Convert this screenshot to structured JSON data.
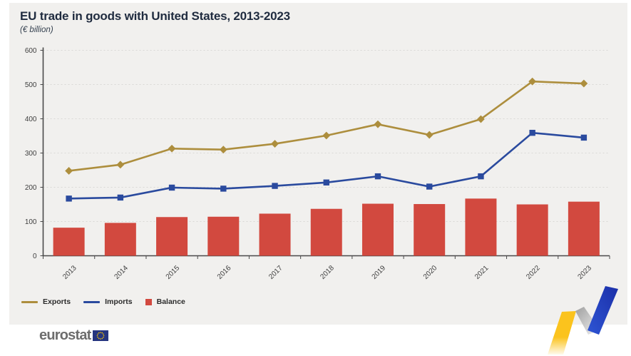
{
  "header": {
    "title": "EU trade in goods with United States, 2013-2023",
    "subtitle": "(€ billion)"
  },
  "chart_data": {
    "type": "combo",
    "title": "EU trade in goods with United States, 2013-2023",
    "subtitle": "(€ billion)",
    "categories": [
      "2013",
      "2014",
      "2015",
      "2016",
      "2017",
      "2018",
      "2019",
      "2020",
      "2021",
      "2022",
      "2023"
    ],
    "series": [
      {
        "name": "Exports",
        "type": "line",
        "marker": "diamond",
        "color": "#ad8e3d",
        "values": [
          248,
          266,
          313,
          310,
          327,
          351,
          384,
          353,
          399,
          509,
          503
        ]
      },
      {
        "name": "Imports",
        "type": "line",
        "marker": "square",
        "color": "#2a4a9e",
        "values": [
          167,
          170,
          199,
          196,
          204,
          214,
          232,
          202,
          232,
          359,
          345
        ]
      },
      {
        "name": "Balance",
        "type": "bar",
        "color": "#d2493f",
        "values": [
          82,
          96,
          113,
          114,
          123,
          137,
          152,
          151,
          167,
          150,
          158
        ]
      }
    ],
    "xlabel": "",
    "ylabel": "",
    "ylim": [
      0,
      600
    ],
    "yticks": [
      0,
      100,
      200,
      300,
      400,
      500,
      600
    ],
    "grid": "horizontal-dashed",
    "legend_position": "bottom-left"
  },
  "footer": {
    "logo_text": "eurostat"
  },
  "colors": {
    "panel_background": "#f1f0ee",
    "title_text": "#1f2b3f",
    "axis": "#4a4a4a",
    "gridline": "#d9d8d5",
    "motif_yellow": "#fbc31d",
    "motif_blue": "#2343b4",
    "eu_flag_blue": "#26357f",
    "eu_flag_stars": "#ffcc00"
  }
}
